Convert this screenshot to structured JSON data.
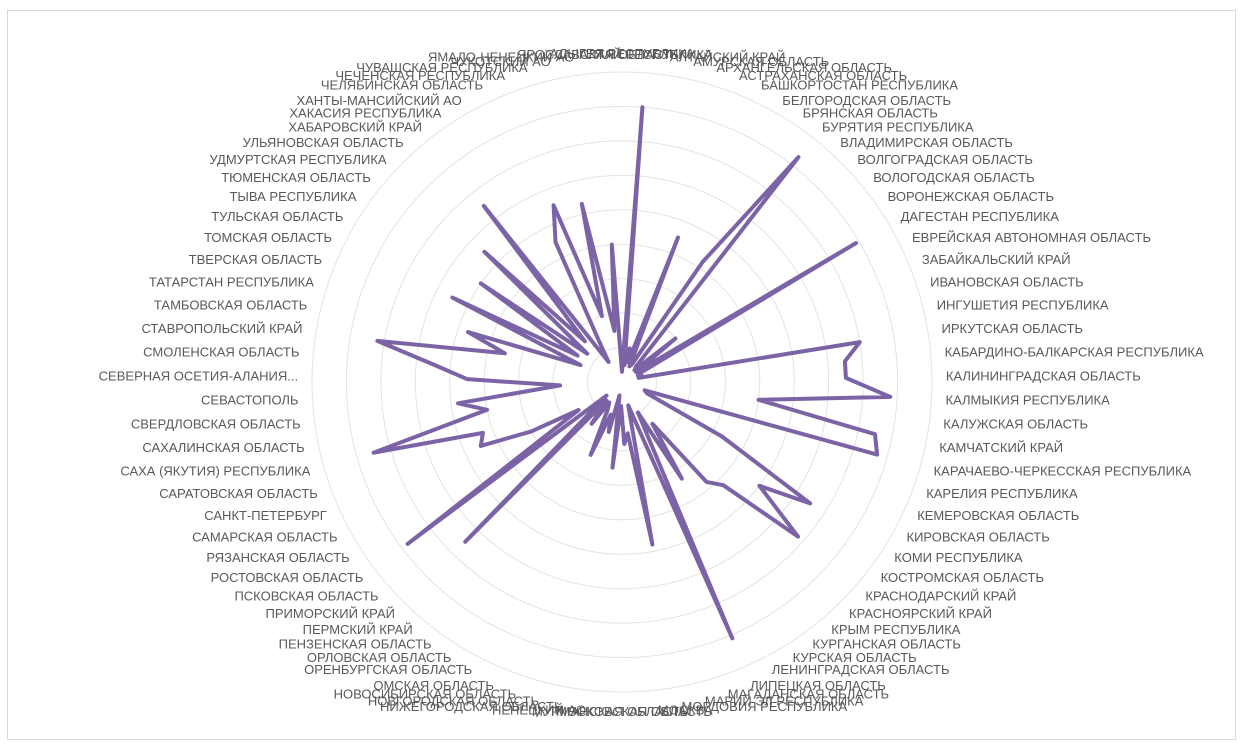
{
  "chart_data": {
    "type": "radar",
    "title": "",
    "grid": true,
    "rings": 9,
    "r_range": [
      0,
      9
    ],
    "series_color": "#7b63a6",
    "categories": [
      "АДЫГЕЯ РЕСПУБЛИКА",
      "АЛТАЙ РЕСПУБЛИКА",
      "АЛТАЙСКИЙ КРАЙ",
      "АМУРСКАЯ ОБЛАСТЬ",
      "АРХАНГЕЛЬСКАЯ ОБЛАСТЬ",
      "АСТРАХАНСКАЯ ОБЛАСТЬ",
      "БАШКОРТОСТАН РЕСПУБЛИКА",
      "БЕЛГОРОДСКАЯ ОБЛАСТЬ",
      "БРЯНСКАЯ ОБЛАСТЬ",
      "БУРЯТИЯ РЕСПУБЛИКА",
      "ВЛАДИМИРСКАЯ ОБЛАСТЬ",
      "ВОЛГОГРАДСКАЯ ОБЛАСТЬ",
      "ВОЛОГОДСКАЯ ОБЛАСТЬ",
      "ВОРОНЕЖСКАЯ ОБЛАСТЬ",
      "ДАГЕСТАН РЕСПУБЛИКА",
      "ЕВРЕЙСКАЯ АВТОНОМНАЯ ОБЛАСТЬ",
      "ЗАБАЙКАЛЬСКИЙ КРАЙ",
      "ИВАНОВСКАЯ ОБЛАСТЬ",
      "ИНГУШЕТИЯ РЕСПУБЛИКА",
      "ИРКУТСКАЯ ОБЛАСТЬ",
      "КАБАРДИНО-БАЛКАРСКАЯ РЕСПУБЛИКА",
      "КАЛИНИНГРАДСКАЯ ОБЛАСТЬ",
      "КАЛМЫКИЯ РЕСПУБЛИКА",
      "КАЛУЖСКАЯ ОБЛАСТЬ",
      "КАМЧАТСКИЙ КРАЙ",
      "КАРАЧАЕВО-ЧЕРКЕССКАЯ РЕСПУБЛИКА",
      "КАРЕЛИЯ РЕСПУБЛИКА",
      "КЕМЕРОВСКАЯ ОБЛАСТЬ",
      "КИРОВСКАЯ ОБЛАСТЬ",
      "КОМИ РЕСПУБЛИКА",
      "КОСТРОМСКАЯ ОБЛАСТЬ",
      "КРАСНОДАРСКИЙ КРАЙ",
      "КРАСНОЯРСКИЙ КРАЙ",
      "КРЫМ РЕСПУБЛИКА",
      "КУРГАНСКАЯ ОБЛАСТЬ",
      "КУРСКАЯ ОБЛАСТЬ",
      "ЛЕНИНГРАДСКАЯ ОБЛАСТЬ",
      "ЛИПЕЦКАЯ ОБЛАСТЬ",
      "МАГАДАНСКАЯ ОБЛАСТЬ",
      "МАРИЙ ЭЛ РЕСПУБЛИКА",
      "МОРДОВИЯ РЕСПУБЛИКА",
      "МОСКВА",
      "МОСКОВСКАЯ ОБЛАСТЬ",
      "МУРМАНСКАЯ ОБЛАСТЬ",
      "НЕНЕЦКИЙ АО",
      "НИЖЕГОРОДСКАЯ ОБЛАСТЬ",
      "НОВГОРОДСКАЯ ОБЛАСТЬ",
      "НОВОСИБИРСКАЯ ОБЛАСТЬ",
      "ОМСКАЯ ОБЛАСТЬ",
      "ОРЕНБУРГСКАЯ ОБЛАСТЬ",
      "ОРЛОВСКАЯ ОБЛАСТЬ",
      "ПЕНЗЕНСКАЯ ОБЛАСТЬ",
      "ПЕРМСКИЙ КРАЙ",
      "ПРИМОРСКИЙ КРАЙ",
      "ПСКОВСКАЯ ОБЛАСТЬ",
      "РОСТОВСКАЯ ОБЛАСТЬ",
      "РЯЗАНСКАЯ ОБЛАСТЬ",
      "САМАРСКАЯ ОБЛАСТЬ",
      "САНКТ-ПЕТЕРБУРГ",
      "САРАТОВСКАЯ ОБЛАСТЬ",
      "САХА (ЯКУТИЯ) РЕСПУБЛИКА",
      "САХАЛИНСКАЯ ОБЛАСТЬ",
      "СВЕРДЛОВСКАЯ ОБЛАСТЬ",
      "СЕВАСТОПОЛЬ",
      "СЕВЕРНАЯ ОСЕТИЯ-АЛАНИЯ...",
      "СМОЛЕНСКАЯ ОБЛАСТЬ",
      "СТАВРОПОЛЬСКИЙ КРАЙ",
      "ТАМБОВСКАЯ ОБЛАСТЬ",
      "ТАТАРСТАН РЕСПУБЛИКА",
      "ТВЕРСКАЯ ОБЛАСТЬ",
      "ТОМСКАЯ ОБЛАСТЬ",
      "ТУЛЬСКАЯ ОБЛАСТЬ",
      "ТЫВА РЕСПУБЛИКА",
      "ТЮМЕНСКАЯ ОБЛАСТЬ",
      "УДМУРТСКАЯ РЕСПУБЛИКА",
      "УЛЬЯНОВСКАЯ ОБЛАСТЬ",
      "ХАБАРОВСКИЙ КРАЙ",
      "ХАКАСИЯ РЕСПУБЛИКА",
      "ХАНТЫ-МАНСИЙСКИЙ АО",
      "ЧЕЛЯБИНСКАЯ ОБЛАСТЬ",
      "ЧЕЧЕНСКАЯ РЕСПУБЛИКА",
      "ЧУВАШСКАЯ РЕСПУБЛИКА",
      "ЧУКОТСКИЙ АО",
      "ЯМАЛО-НЕНЕЦКИЙ АО",
      "ЯРОСЛАВСКАЯ ОБЛАСТЬ"
    ],
    "series": [
      {
        "values": [
          0.3,
          8.0,
          0.5,
          1.0,
          0.6,
          4.5,
          0.5,
          0.6,
          4.2,
          8.3,
          0.6,
          0.5,
          2.0,
          0.5,
          7.9,
          0.6,
          0.5,
          0.6,
          0.5,
          7.0,
          6.5,
          6.5,
          7.8,
          4.0,
          7.5,
          7.7,
          0.7,
          0.8,
          3.3,
          6.5,
          5.0,
          6.8,
          4.2,
          3.8,
          1.5,
          3.3,
          1.0,
          8.1,
          1.3,
          0.7,
          4.8,
          1.5,
          1.8,
          0.7,
          2.5,
          0.4,
          1.5,
          1.0,
          2.3,
          0.9,
          0.7,
          1.5,
          0.7,
          6.5,
          0.6,
          7.8,
          1.5,
          3.0,
          4.5,
          4.3,
          7.5,
          4.0,
          4.8,
          1.8,
          4.5,
          5.5,
          7.2,
          3.5,
          4.7,
          1.3,
          5.5,
          1.5,
          5.0,
          1.3,
          5.5,
          1.6,
          6.5,
          0.7,
          1.3,
          4.5,
          5.5,
          2.0,
          5.3,
          1.5,
          4.0
        ]
      }
    ]
  }
}
